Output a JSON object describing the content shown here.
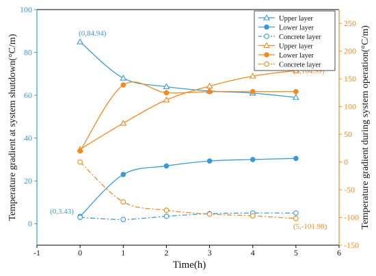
{
  "chart_data": {
    "type": "line",
    "xlabel": "Time(h)",
    "ylabel_left": "Temperature gradient at system shutdown(°C/m)",
    "ylabel_right": "Temperature gradient during system operation(°C/m)",
    "xlim": [
      -1,
      6
    ],
    "ylim_left": [
      -10,
      100
    ],
    "ylim_right": [
      -150,
      275
    ],
    "x_ticks": [
      "-1",
      "0",
      "1",
      "2",
      "3",
      "4",
      "5",
      "6"
    ],
    "y_left_ticks": [
      "0",
      "20",
      "40",
      "60",
      "80",
      "100"
    ],
    "y_right_ticks": [
      "-150",
      "-100",
      "-50",
      "0",
      "50",
      "100",
      "150",
      "200",
      "250"
    ],
    "colors": {
      "shutdown": "#3a9ad9",
      "operation": "#f28a1e"
    },
    "series": [
      {
        "name": "Upper layer",
        "axis": "left",
        "color": "#3a9ad9",
        "marker": "triangle",
        "dash": "solid",
        "x": [
          0,
          1,
          2,
          3,
          4,
          5
        ],
        "values": [
          84.94,
          68,
          64,
          62,
          61,
          59
        ]
      },
      {
        "name": "Lower layer",
        "axis": "left",
        "color": "#3a9ad9",
        "marker": "circle-filled",
        "dash": "solid",
        "x": [
          0,
          1,
          2,
          3,
          4,
          5
        ],
        "values": [
          3.43,
          23,
          27,
          29.3,
          30,
          30.5
        ]
      },
      {
        "name": "Concrete layer",
        "axis": "left",
        "color": "#3a9ad9",
        "marker": "circle-open",
        "dash": "dashdot",
        "x": [
          0,
          1,
          2,
          3,
          4,
          5
        ],
        "values": [
          3,
          2,
          3.5,
          4.7,
          5,
          5
        ]
      },
      {
        "name": "Upper layer",
        "axis": "right",
        "color": "#f28a1e",
        "marker": "triangle",
        "dash": "solid",
        "x": [
          0,
          1,
          2,
          3,
          4,
          5
        ],
        "values": [
          23,
          70,
          112,
          137,
          155,
          164.99
        ]
      },
      {
        "name": "Lower layer",
        "axis": "right",
        "color": "#f28a1e",
        "marker": "circle-filled",
        "dash": "solid",
        "x": [
          0,
          1,
          2,
          3,
          4,
          5
        ],
        "values": [
          20,
          139,
          125,
          127,
          127,
          127
        ]
      },
      {
        "name": "Concrete layer",
        "axis": "right",
        "color": "#f28a1e",
        "marker": "circle-open",
        "dash": "dashdot",
        "x": [
          0,
          1,
          2,
          3,
          4,
          5
        ],
        "values": [
          0,
          -72,
          -87,
          -94,
          -97,
          -101.98
        ]
      }
    ],
    "annotations": [
      {
        "text": "(0,84.94)",
        "color": "#3a9ad9"
      },
      {
        "text": "(0,3.43)",
        "color": "#3a9ad9"
      },
      {
        "text": "(5,164.99)",
        "color": "#f28a1e"
      },
      {
        "text": "(5,-101.98)",
        "color": "#f28a1e"
      }
    ],
    "legend": "top-right"
  }
}
